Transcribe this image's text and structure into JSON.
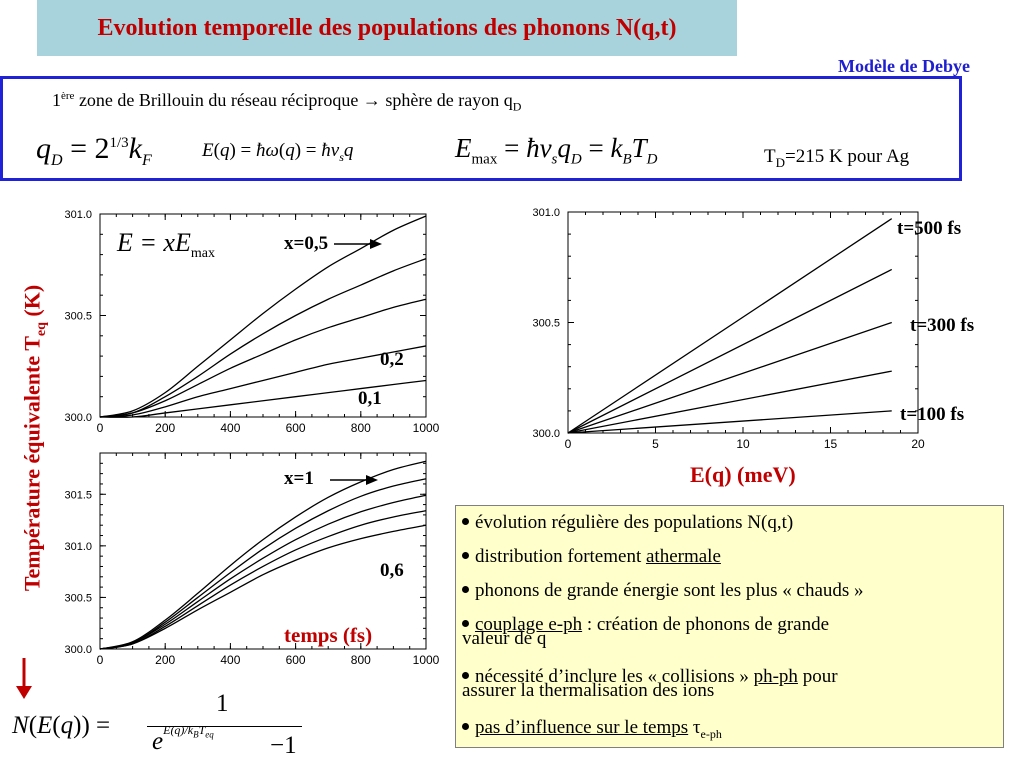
{
  "title": "Evolution temporelle des populations des phonons N(q,t)",
  "subtitle": "Modèle de Debye",
  "definition": {
    "line1_pre": "1",
    "line1_sup": "ère",
    "line1_text": " zone de Brillouin du réseau réciproque → sphère de rayon q",
    "line1_sub": "D",
    "td_text": "T",
    "td_sub": "D",
    "td_rest": "=215 K pour Ag"
  },
  "yaxis_label_main": "Température équivalente T",
  "yaxis_label_sub": "eq",
  "yaxis_label_unit": " (K)",
  "emax_label_pre": "E = xE",
  "emax_label_sub": "max",
  "eq_axis_label": "E(q) (meV)",
  "temps_label": "temps (fs)",
  "bullets": [
    {
      "pre": "évolution régulière des populations N(q,t)",
      "u": "",
      "post": "",
      "line2": ""
    },
    {
      "pre": "distribution fortement ",
      "u": "athermale",
      "post": "",
      "line2": ""
    },
    {
      "pre": "phonons de grande énergie sont les plus « chauds »",
      "u": "",
      "post": "",
      "line2": ""
    },
    {
      "pre": "",
      "u": "couplage e-ph",
      "post": " : création de phonons de grande",
      "line2": "valeur de q"
    },
    {
      "pre": "nécessité d’inclure les « collisions » ",
      "u": "ph-ph",
      "post": " pour",
      "line2": "assurer la thermalisation des ions"
    },
    {
      "pre": "",
      "u": "pas d’influence sur le temps",
      "post": " τ",
      "sub": "e-ph",
      "line2": ""
    }
  ],
  "colors": {
    "title_bg": "#a9d3dc",
    "title_fg": "#c00000",
    "accent_blue": "#1f22d6",
    "bullet_bg": "#ffffcc"
  },
  "chart_data": [
    {
      "type": "line",
      "xlabel": "",
      "ylabel": "",
      "xlim": [
        0,
        1000
      ],
      "ylim": [
        300.0,
        301.0
      ],
      "xticks": [
        "0",
        "200",
        "400",
        "600",
        "800",
        "1000"
      ],
      "yticks": [
        "300.0",
        "300.5",
        "301.0"
      ],
      "annotations": [
        "x=0,5",
        "0,2",
        "0,1"
      ],
      "series": [
        {
          "x": [
            0,
            100,
            200,
            300,
            400,
            500,
            600,
            700,
            800,
            900,
            1000
          ],
          "y": [
            300.0,
            300.0,
            300.02,
            300.04,
            300.06,
            300.08,
            300.1,
            300.12,
            300.14,
            300.16,
            300.18
          ]
        },
        {
          "x": [
            0,
            100,
            200,
            300,
            400,
            500,
            600,
            700,
            800,
            900,
            1000
          ],
          "y": [
            300.0,
            300.01,
            300.05,
            300.1,
            300.14,
            300.18,
            300.22,
            300.26,
            300.29,
            300.32,
            300.35
          ]
        },
        {
          "x": [
            0,
            100,
            200,
            300,
            400,
            500,
            600,
            700,
            800,
            900,
            1000
          ],
          "y": [
            300.0,
            300.02,
            300.08,
            300.16,
            300.24,
            300.31,
            300.38,
            300.44,
            300.49,
            300.54,
            300.58
          ]
        },
        {
          "x": [
            0,
            100,
            200,
            300,
            400,
            500,
            600,
            700,
            800,
            900,
            1000
          ],
          "y": [
            300.0,
            300.02,
            300.1,
            300.2,
            300.31,
            300.41,
            300.5,
            300.58,
            300.65,
            300.72,
            300.78
          ]
        },
        {
          "x": [
            0,
            100,
            200,
            300,
            400,
            500,
            600,
            700,
            800,
            900,
            1000
          ],
          "y": [
            300.0,
            300.03,
            300.12,
            300.25,
            300.38,
            300.51,
            300.63,
            300.74,
            300.83,
            300.92,
            300.99
          ]
        }
      ]
    },
    {
      "type": "line",
      "xlabel": "",
      "ylabel": "",
      "xlim": [
        0,
        1000
      ],
      "ylim": [
        300.0,
        301.9
      ],
      "xticks": [
        "0",
        "200",
        "400",
        "600",
        "800",
        "1000"
      ],
      "yticks": [
        "300.0",
        "300.5",
        "301.0",
        "301.5"
      ],
      "annotations": [
        "x=1",
        "0,6"
      ],
      "series": [
        {
          "x": [
            0,
            100,
            200,
            300,
            400,
            500,
            600,
            700,
            800,
            900,
            1000
          ],
          "y": [
            300.0,
            300.05,
            300.2,
            300.38,
            300.55,
            300.72,
            300.86,
            300.98,
            301.07,
            301.14,
            301.2
          ]
        },
        {
          "x": [
            0,
            100,
            200,
            300,
            400,
            500,
            600,
            700,
            800,
            900,
            1000
          ],
          "y": [
            300.0,
            300.05,
            300.22,
            300.42,
            300.62,
            300.8,
            300.96,
            301.09,
            301.2,
            301.28,
            301.34
          ]
        },
        {
          "x": [
            0,
            100,
            200,
            300,
            400,
            500,
            600,
            700,
            800,
            900,
            1000
          ],
          "y": [
            300.0,
            300.06,
            300.24,
            300.46,
            300.68,
            300.88,
            301.06,
            301.21,
            301.33,
            301.42,
            301.49
          ]
        },
        {
          "x": [
            0,
            100,
            200,
            300,
            400,
            500,
            600,
            700,
            800,
            900,
            1000
          ],
          "y": [
            300.0,
            300.06,
            300.26,
            300.5,
            300.74,
            300.97,
            301.17,
            301.34,
            301.48,
            301.58,
            301.65
          ]
        },
        {
          "x": [
            0,
            100,
            200,
            300,
            400,
            500,
            600,
            700,
            800,
            900,
            1000
          ],
          "y": [
            300.0,
            300.07,
            300.28,
            300.54,
            300.81,
            301.06,
            301.28,
            301.47,
            301.62,
            301.74,
            301.82
          ]
        }
      ]
    },
    {
      "type": "line",
      "xlabel": "E(q) (meV)",
      "ylabel": "",
      "xlim": [
        0,
        20
      ],
      "ylim": [
        300.0,
        301.0
      ],
      "xticks": [
        "0",
        "5",
        "10",
        "15",
        "20"
      ],
      "yticks": [
        "300.0",
        "300.5",
        "301.0"
      ],
      "annotations": [
        "t=500 fs",
        "t=300 fs",
        "t=100 fs"
      ],
      "series": [
        {
          "name": "t=100 fs",
          "x": [
            0,
            18.5
          ],
          "y": [
            300.0,
            300.1
          ]
        },
        {
          "x": [
            0,
            18.5
          ],
          "y": [
            300.0,
            300.28
          ]
        },
        {
          "name": "t=300 fs",
          "x": [
            0,
            18.5
          ],
          "y": [
            300.0,
            300.5
          ]
        },
        {
          "x": [
            0,
            18.5
          ],
          "y": [
            300.0,
            300.74
          ]
        },
        {
          "name": "t=500 fs",
          "x": [
            0,
            18.5
          ],
          "y": [
            300.0,
            300.97
          ]
        }
      ]
    }
  ]
}
